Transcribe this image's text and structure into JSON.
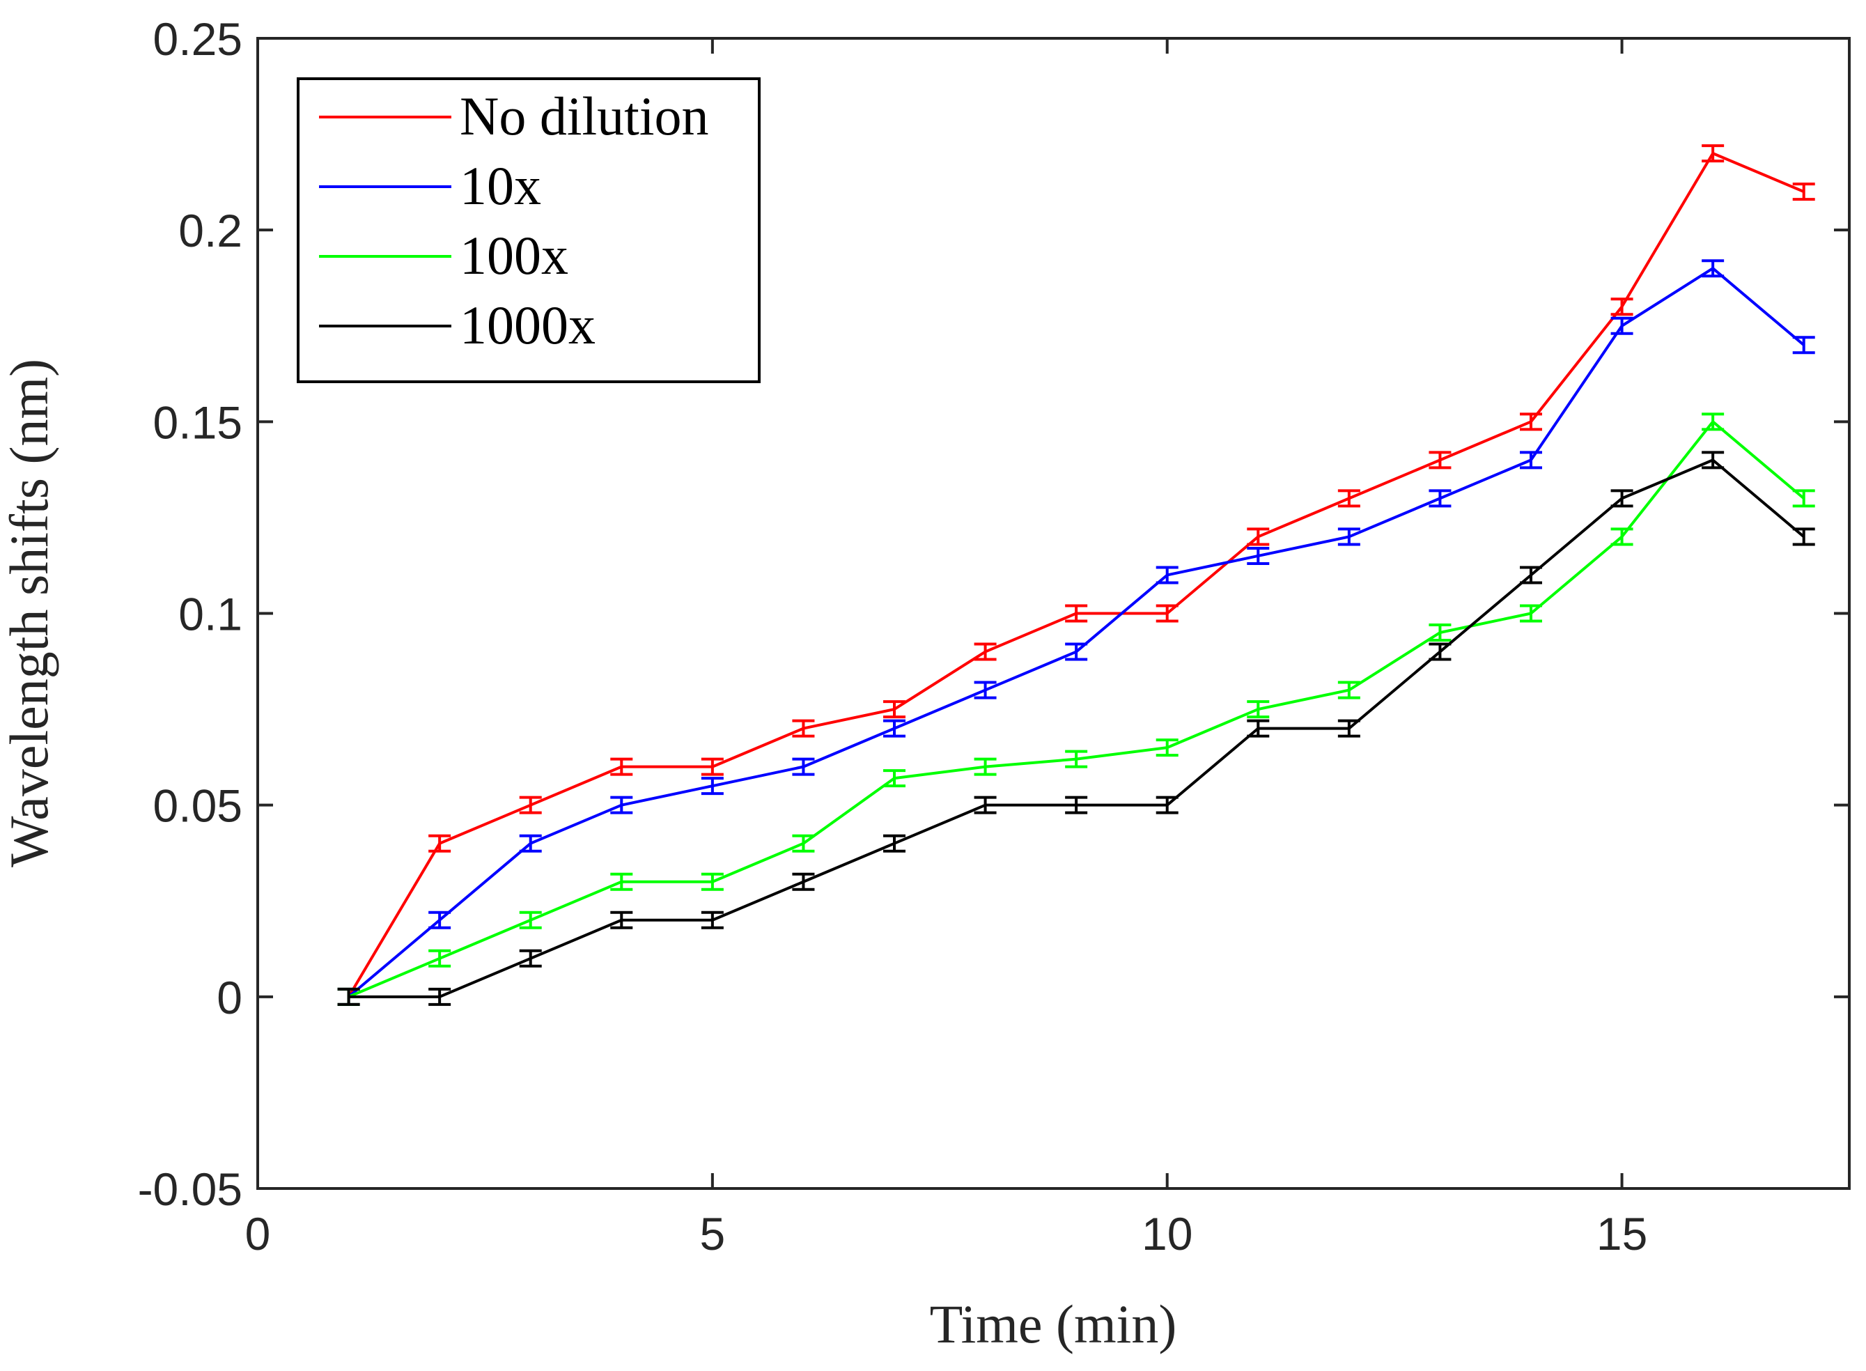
{
  "chart_data": {
    "type": "line",
    "title": "",
    "xlabel": "Time (min)",
    "ylabel": "Wavelength shifts (nm)",
    "xlim": [
      0,
      17.5
    ],
    "ylim": [
      -0.05,
      0.25
    ],
    "xticks": [
      0,
      5,
      10,
      15
    ],
    "xtick_labels": [
      "0",
      "5",
      "10",
      "15"
    ],
    "yticks": [
      -0.05,
      0,
      0.05,
      0.1,
      0.15,
      0.2,
      0.25
    ],
    "ytick_labels": [
      "-0.05",
      "0",
      "0.05",
      "0.1",
      "0.15",
      "0.2",
      "0.25"
    ],
    "grid": false,
    "legend_position": "top-left",
    "error_bar_halfwidth": 0.002,
    "x": [
      1,
      2,
      3,
      4,
      5,
      6,
      7,
      8,
      9,
      10,
      11,
      12,
      13,
      14,
      15,
      16,
      17
    ],
    "series": [
      {
        "name": "No dilution",
        "color": "#ff0000",
        "values": [
          0,
          0.04,
          0.05,
          0.06,
          0.06,
          0.07,
          0.075,
          0.09,
          0.1,
          0.1,
          0.12,
          0.13,
          0.14,
          0.15,
          0.18,
          0.22,
          0.21
        ]
      },
      {
        "name": "10x",
        "color": "#0000ff",
        "values": [
          0,
          0.02,
          0.04,
          0.05,
          0.055,
          0.06,
          0.07,
          0.08,
          0.09,
          0.11,
          0.115,
          0.12,
          0.13,
          0.14,
          0.175,
          0.19,
          0.17
        ]
      },
      {
        "name": "100x",
        "color": "#00ff00",
        "values": [
          0,
          0.01,
          0.02,
          0.03,
          0.03,
          0.04,
          0.057,
          0.06,
          0.062,
          0.065,
          0.075,
          0.08,
          0.095,
          0.1,
          0.12,
          0.15,
          0.13
        ]
      },
      {
        "name": "1000x",
        "color": "#000000",
        "values": [
          0,
          0,
          0.01,
          0.02,
          0.02,
          0.03,
          0.04,
          0.05,
          0.05,
          0.05,
          0.07,
          0.07,
          0.09,
          0.11,
          0.13,
          0.14,
          0.12
        ]
      }
    ]
  }
}
